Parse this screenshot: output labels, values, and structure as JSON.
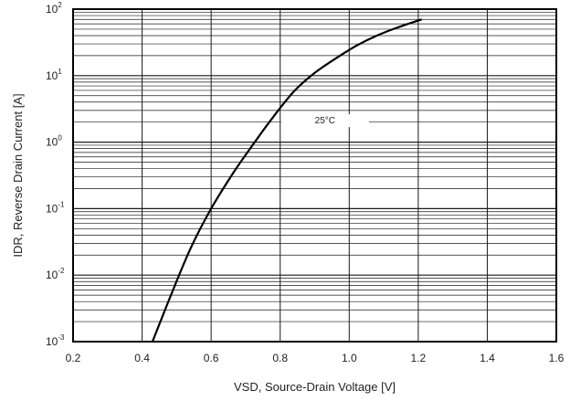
{
  "chart_data": {
    "type": "line",
    "xlabel": "VSD, Source-Drain Voltage [V]",
    "ylabel": "IDR, Reverse Drain Current [A]",
    "xlim": [
      0.2,
      1.6
    ],
    "ylim": [
      0.001,
      100
    ],
    "y_scale": "log",
    "grid": true,
    "x_ticks": [
      "0.2",
      "0.4",
      "0.6",
      "0.8",
      "1.0",
      "1.2",
      "1.4",
      "1.6"
    ],
    "y_ticks": [
      {
        "base": "10",
        "exp": "-3"
      },
      {
        "base": "10",
        "exp": "-2"
      },
      {
        "base": "10",
        "exp": "-1"
      },
      {
        "base": "10",
        "exp": "0"
      },
      {
        "base": "10",
        "exp": "1"
      },
      {
        "base": "10",
        "exp": "2"
      }
    ],
    "annotation": "25°C",
    "series": [
      {
        "x": [
          0.43,
          0.48,
          0.54,
          0.6,
          0.66,
          0.72,
          0.78,
          0.84,
          0.9,
          0.96,
          1.02,
          1.08,
          1.14,
          1.21
        ],
        "y": [
          0.001,
          0.0045,
          0.025,
          0.1,
          0.32,
          0.9,
          2.4,
          5.8,
          11,
          18,
          28,
          40,
          53,
          70
        ]
      }
    ],
    "colors": {
      "line": "#000000",
      "grid": "#1a1a1a",
      "frame": "#000000"
    }
  }
}
